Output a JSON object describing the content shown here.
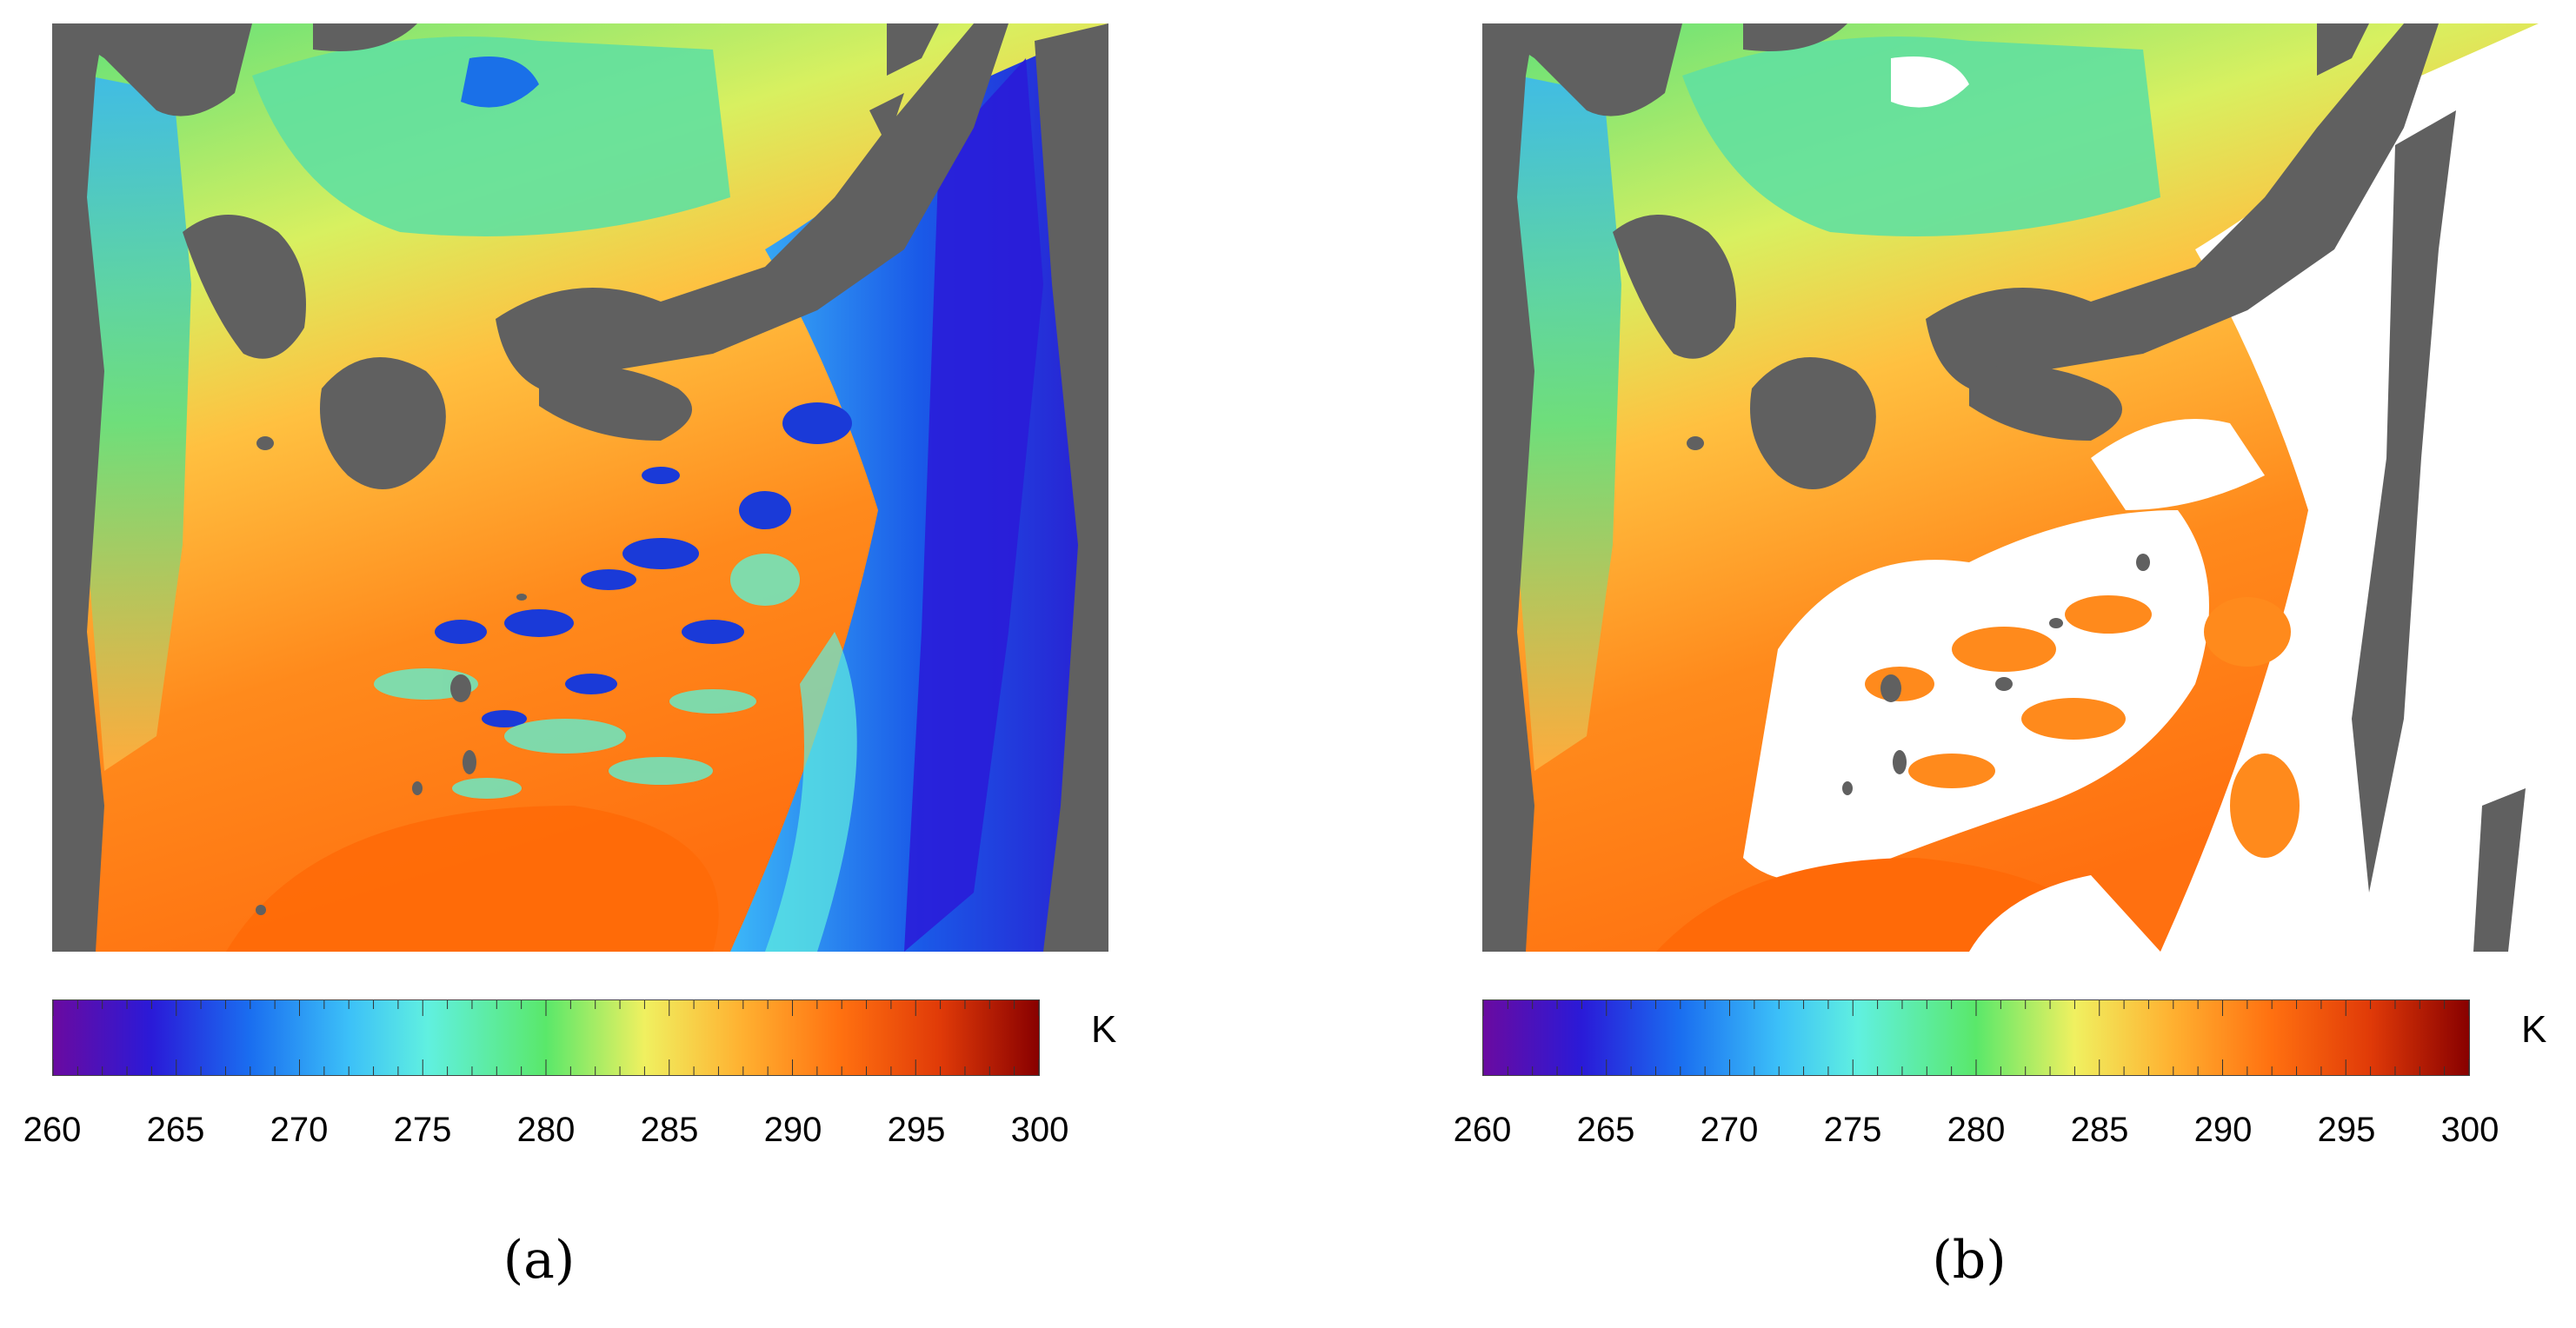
{
  "figure": {
    "panels": [
      {
        "label": "(a)",
        "layer": "brightness temperature field with clouds (unmasked)"
      },
      {
        "label": "(b)",
        "layer": "brightness temperature field with cloud pixels masked (white)"
      }
    ],
    "colorbar": {
      "unit": "K",
      "ticks": [
        "260",
        "265",
        "270",
        "275",
        "280",
        "285",
        "290",
        "295",
        "300"
      ],
      "range": [
        260,
        300
      ],
      "colormap": [
        "#6a0aa0",
        "#2a1ad8",
        "#1a6ef0",
        "#3cc0f8",
        "#60f0e0",
        "#5ae86a",
        "#f0f060",
        "#ffb030",
        "#ff7010",
        "#e03a08",
        "#880000"
      ]
    },
    "colors": {
      "land": "#606060",
      "cloud_mask": "#ffffff",
      "warm_sea": "#ff7a10",
      "cold_cloud": "#2030c8"
    }
  }
}
